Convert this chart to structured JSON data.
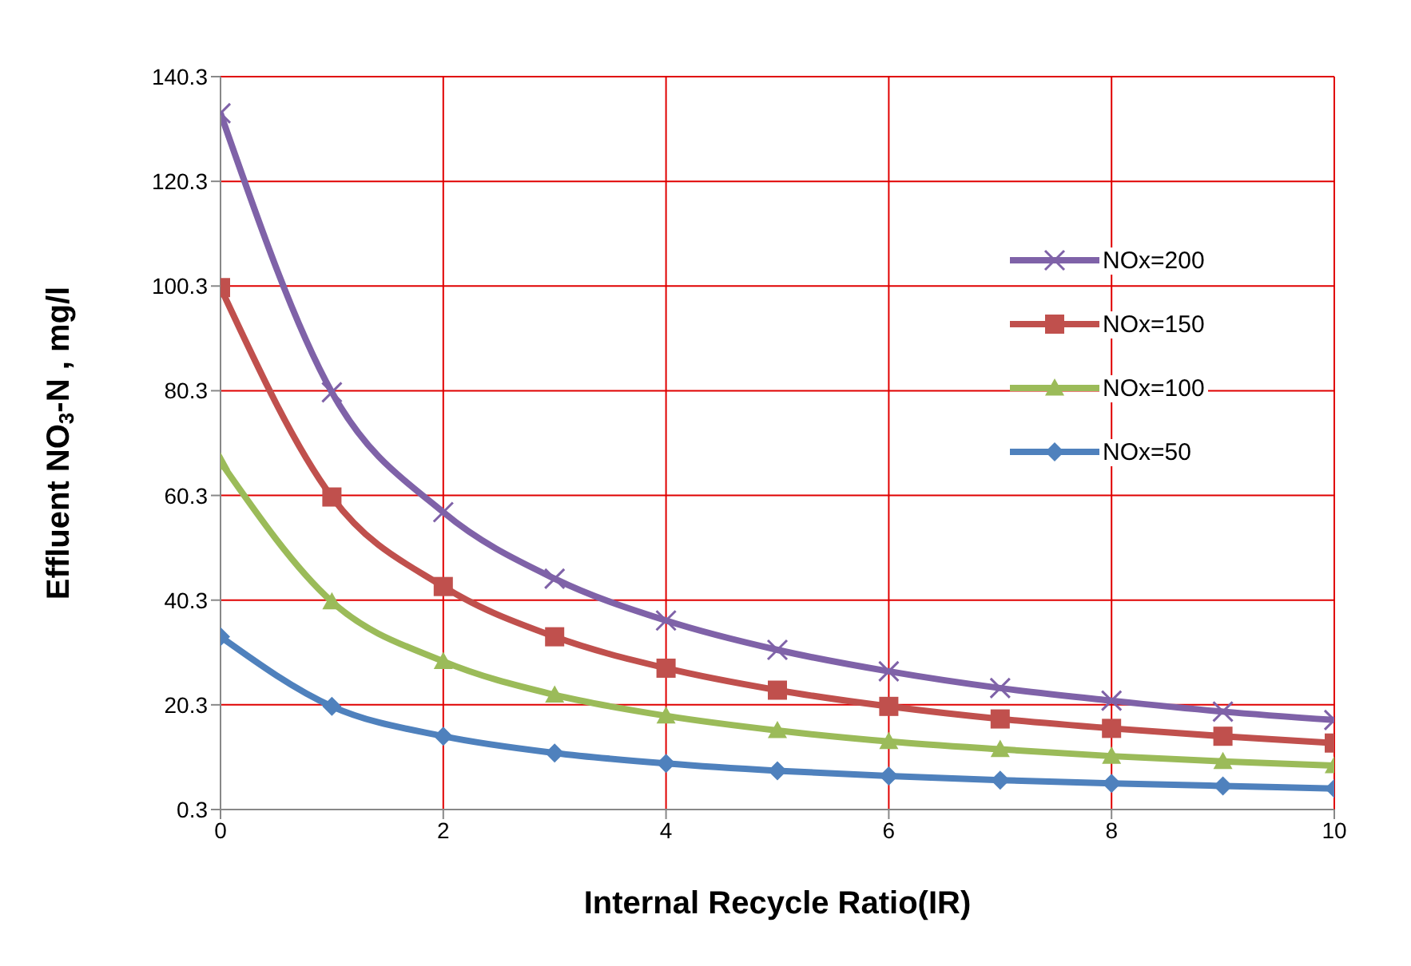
{
  "chart_data": {
    "type": "line",
    "xlabel": "Internal Recycle Ratio(IR)",
    "ylabel": "Effluent NO$_{3}$-N , mg/l",
    "x": [
      0,
      1,
      2,
      3,
      4,
      5,
      6,
      7,
      8,
      9,
      10
    ],
    "series": [
      {
        "name": "NOx=200",
        "color": "#7f62a8",
        "marker": "cross",
        "values": [
          133.3,
          80,
          57.1,
          44.4,
          36.4,
          30.8,
          26.7,
          23.5,
          21.1,
          19,
          17.4
        ]
      },
      {
        "name": "NOx=150",
        "color": "#c0504d",
        "marker": "square",
        "values": [
          100,
          60,
          42.9,
          33.3,
          27.3,
          23.1,
          20,
          17.6,
          15.8,
          14.3,
          13
        ]
      },
      {
        "name": "NOx=100",
        "color": "#9bbb59",
        "marker": "triangle",
        "values": [
          66.7,
          40,
          28.6,
          22.2,
          18.2,
          15.4,
          13.3,
          11.8,
          10.5,
          9.5,
          8.7
        ]
      },
      {
        "name": "NOx=50",
        "color": "#4f81bd",
        "marker": "diamond",
        "values": [
          33.3,
          20,
          14.3,
          11.1,
          9.1,
          7.7,
          6.7,
          5.9,
          5.3,
          4.8,
          4.3
        ]
      }
    ],
    "xlim": [
      0,
      10
    ],
    "xticks": [
      0,
      2,
      4,
      6,
      8,
      10
    ],
    "ylim": [
      0.3,
      140.3
    ],
    "yticks": [
      0.3,
      20.3,
      40.3,
      60.3,
      80.3,
      100.3,
      120.3,
      140.3
    ],
    "grid": true,
    "legend": "right",
    "line_style": "solid"
  }
}
